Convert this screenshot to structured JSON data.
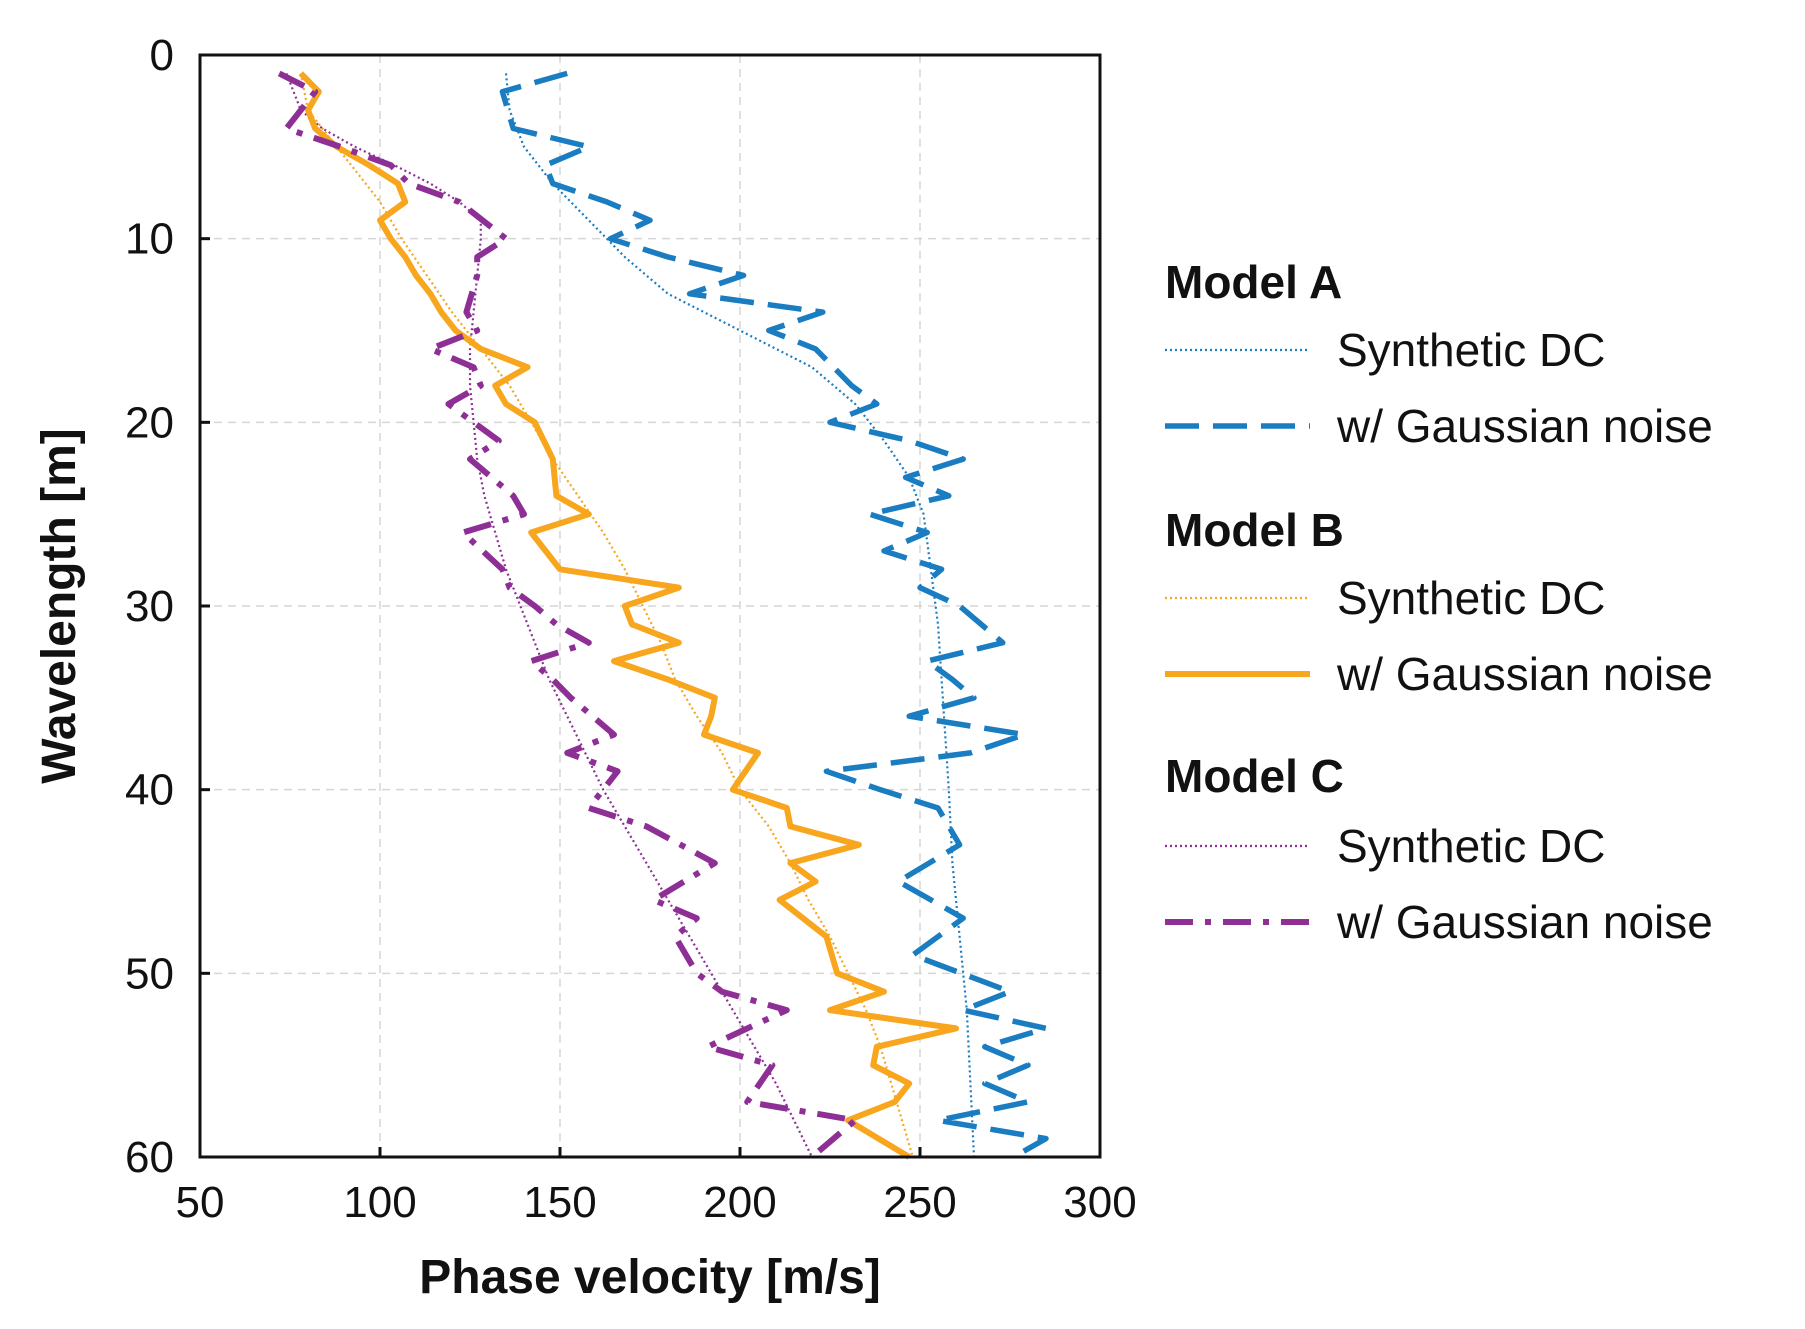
{
  "chart_data": {
    "type": "line",
    "xlabel": "Phase velocity [m/s]",
    "ylabel": "Wavelength [m]",
    "xlim": [
      50,
      300
    ],
    "ylim": [
      0,
      60
    ],
    "y_inverted": true,
    "x_ticks": [
      "50",
      "100",
      "150",
      "200",
      "250",
      "300"
    ],
    "y_ticks": [
      "0",
      "10",
      "20",
      "30",
      "40",
      "50",
      "60"
    ],
    "grid": true,
    "legend_position": "right",
    "legend_groups": [
      {
        "title": "Model A",
        "entries": [
          "Synthetic DC",
          "w/ Gaussian noise"
        ]
      },
      {
        "title": "Model B",
        "entries": [
          "Synthetic DC",
          "w/ Gaussian noise"
        ]
      },
      {
        "title": "Model C",
        "entries": [
          "Synthetic DC",
          "w/ Gaussian noise"
        ]
      }
    ],
    "series": [
      {
        "name": "Model A Synthetic DC",
        "model": "A",
        "kind": "synthetic",
        "color": "#1a7cc1",
        "points": [
          [
            135,
            1
          ],
          [
            136,
            3
          ],
          [
            140,
            5
          ],
          [
            148,
            7
          ],
          [
            158,
            9
          ],
          [
            168,
            11
          ],
          [
            180,
            13
          ],
          [
            200,
            15
          ],
          [
            220,
            17
          ],
          [
            232,
            19
          ],
          [
            240,
            21
          ],
          [
            247,
            23
          ],
          [
            251,
            25
          ],
          [
            253,
            28
          ],
          [
            255,
            31
          ],
          [
            256,
            34
          ],
          [
            257,
            37
          ],
          [
            258,
            40
          ],
          [
            259,
            44
          ],
          [
            261,
            48
          ],
          [
            263,
            52
          ],
          [
            264,
            56
          ],
          [
            265,
            60
          ]
        ]
      },
      {
        "name": "Model A w/ Gaussian noise",
        "model": "A",
        "kind": "noisy",
        "color": "#1a7cc1",
        "points": [
          [
            152,
            1
          ],
          [
            134,
            2
          ],
          [
            137,
            4
          ],
          [
            158,
            5
          ],
          [
            146,
            6
          ],
          [
            148,
            7
          ],
          [
            163,
            8
          ],
          [
            175,
            9
          ],
          [
            164,
            10
          ],
          [
            180,
            11
          ],
          [
            201,
            12
          ],
          [
            186,
            13
          ],
          [
            223,
            14
          ],
          [
            208,
            15
          ],
          [
            221,
            16
          ],
          [
            226,
            17
          ],
          [
            231,
            18
          ],
          [
            238,
            19
          ],
          [
            225,
            20
          ],
          [
            247,
            21
          ],
          [
            262,
            22
          ],
          [
            246,
            23
          ],
          [
            258,
            24
          ],
          [
            236,
            25
          ],
          [
            252,
            26
          ],
          [
            240,
            27
          ],
          [
            256,
            28
          ],
          [
            250,
            29
          ],
          [
            261,
            30
          ],
          [
            273,
            32
          ],
          [
            252,
            33
          ],
          [
            259,
            34
          ],
          [
            265,
            35
          ],
          [
            247,
            36
          ],
          [
            279,
            37
          ],
          [
            264,
            38
          ],
          [
            224,
            39
          ],
          [
            239,
            40
          ],
          [
            255,
            41
          ],
          [
            261,
            43
          ],
          [
            244,
            45
          ],
          [
            262,
            47
          ],
          [
            248,
            49
          ],
          [
            275,
            51
          ],
          [
            262,
            52
          ],
          [
            285,
            53
          ],
          [
            268,
            54
          ],
          [
            280,
            55
          ],
          [
            268,
            56
          ],
          [
            280,
            57
          ],
          [
            255,
            58
          ],
          [
            285,
            59
          ],
          [
            276,
            60
          ]
        ]
      },
      {
        "name": "Model B Synthetic DC",
        "model": "B",
        "kind": "synthetic",
        "color": "#f7a61e",
        "points": [
          [
            78,
            1
          ],
          [
            80,
            3
          ],
          [
            84,
            4
          ],
          [
            92,
            6
          ],
          [
            100,
            8
          ],
          [
            106,
            10
          ],
          [
            113,
            12
          ],
          [
            120,
            14
          ],
          [
            128,
            16
          ],
          [
            136,
            18
          ],
          [
            142,
            20
          ],
          [
            148,
            22
          ],
          [
            155,
            24
          ],
          [
            162,
            26
          ],
          [
            168,
            28
          ],
          [
            173,
            30
          ],
          [
            178,
            32
          ],
          [
            182,
            34
          ],
          [
            188,
            36
          ],
          [
            195,
            38
          ],
          [
            200,
            40
          ],
          [
            208,
            42
          ],
          [
            214,
            44
          ],
          [
            219,
            46
          ],
          [
            225,
            48
          ],
          [
            230,
            50
          ],
          [
            235,
            52
          ],
          [
            239,
            54
          ],
          [
            242,
            56
          ],
          [
            245,
            58
          ],
          [
            248,
            60
          ]
        ]
      },
      {
        "name": "Model B w/ Gaussian noise",
        "model": "B",
        "kind": "noisy",
        "color": "#f7a61e",
        "points": [
          [
            78,
            1
          ],
          [
            83,
            2
          ],
          [
            80,
            3
          ],
          [
            82,
            4
          ],
          [
            88,
            5
          ],
          [
            97,
            6
          ],
          [
            105,
            7
          ],
          [
            107,
            8
          ],
          [
            100,
            9
          ],
          [
            103,
            10
          ],
          [
            107,
            11
          ],
          [
            110,
            12
          ],
          [
            114,
            13
          ],
          [
            117,
            14
          ],
          [
            121,
            15
          ],
          [
            128,
            16
          ],
          [
            141,
            17
          ],
          [
            132,
            18
          ],
          [
            135,
            19
          ],
          [
            143,
            20
          ],
          [
            148,
            22
          ],
          [
            149,
            24
          ],
          [
            158,
            25
          ],
          [
            142,
            26
          ],
          [
            150,
            28
          ],
          [
            183,
            29
          ],
          [
            168,
            30
          ],
          [
            170,
            31
          ],
          [
            183,
            32
          ],
          [
            165,
            33
          ],
          [
            180,
            34
          ],
          [
            193,
            35
          ],
          [
            192,
            36
          ],
          [
            190,
            37
          ],
          [
            205,
            38
          ],
          [
            198,
            40
          ],
          [
            213,
            41
          ],
          [
            214,
            42
          ],
          [
            233,
            43
          ],
          [
            214,
            44
          ],
          [
            221,
            45
          ],
          [
            211,
            46
          ],
          [
            224,
            48
          ],
          [
            227,
            50
          ],
          [
            240,
            51
          ],
          [
            225,
            52
          ],
          [
            260,
            53
          ],
          [
            238,
            54
          ],
          [
            237,
            55
          ],
          [
            247,
            56
          ],
          [
            243,
            57
          ],
          [
            230,
            58
          ],
          [
            247,
            60
          ]
        ]
      },
      {
        "name": "Model C Synthetic DC",
        "model": "C",
        "kind": "synthetic",
        "color": "#8e2f96",
        "points": [
          [
            74,
            1
          ],
          [
            76,
            2
          ],
          [
            78,
            3
          ],
          [
            84,
            4
          ],
          [
            93,
            5
          ],
          [
            104,
            6
          ],
          [
            114,
            7
          ],
          [
            122,
            8
          ],
          [
            128,
            9
          ],
          [
            128,
            10
          ],
          [
            127,
            12
          ],
          [
            126,
            14
          ],
          [
            125,
            16
          ],
          [
            125,
            18
          ],
          [
            126,
            20
          ],
          [
            127,
            22
          ],
          [
            129,
            24
          ],
          [
            132,
            26
          ],
          [
            135,
            28
          ],
          [
            139,
            30
          ],
          [
            143,
            32
          ],
          [
            147,
            34
          ],
          [
            152,
            36
          ],
          [
            157,
            38
          ],
          [
            162,
            40
          ],
          [
            168,
            42
          ],
          [
            174,
            44
          ],
          [
            180,
            46
          ],
          [
            186,
            48
          ],
          [
            192,
            50
          ],
          [
            198,
            52
          ],
          [
            204,
            54
          ],
          [
            210,
            56
          ],
          [
            215,
            58
          ],
          [
            220,
            60
          ]
        ]
      },
      {
        "name": "Model C w/ Gaussian noise",
        "model": "C",
        "kind": "noisy",
        "color": "#8e2f96",
        "points": [
          [
            72,
            1
          ],
          [
            82,
            2
          ],
          [
            78,
            3
          ],
          [
            74,
            4
          ],
          [
            89,
            5
          ],
          [
            103,
            6
          ],
          [
            108,
            7
          ],
          [
            122,
            8
          ],
          [
            135,
            10
          ],
          [
            127,
            11
          ],
          [
            127,
            12
          ],
          [
            124,
            14
          ],
          [
            127,
            15
          ],
          [
            114,
            16
          ],
          [
            126,
            17
          ],
          [
            128,
            18
          ],
          [
            119,
            19
          ],
          [
            133,
            21
          ],
          [
            125,
            22
          ],
          [
            137,
            24
          ],
          [
            140,
            25
          ],
          [
            123,
            26
          ],
          [
            134,
            28
          ],
          [
            136,
            29
          ],
          [
            143,
            30
          ],
          [
            149,
            31
          ],
          [
            158,
            32
          ],
          [
            142,
            33
          ],
          [
            148,
            34
          ],
          [
            153,
            35
          ],
          [
            165,
            37
          ],
          [
            152,
            38
          ],
          [
            166,
            39
          ],
          [
            158,
            41
          ],
          [
            174,
            42
          ],
          [
            193,
            44
          ],
          [
            176,
            46
          ],
          [
            188,
            47
          ],
          [
            182,
            48
          ],
          [
            188,
            50
          ],
          [
            195,
            51
          ],
          [
            213,
            52
          ],
          [
            191,
            54
          ],
          [
            209,
            55
          ],
          [
            202,
            57
          ],
          [
            232,
            58
          ],
          [
            220,
            60
          ]
        ]
      }
    ]
  }
}
